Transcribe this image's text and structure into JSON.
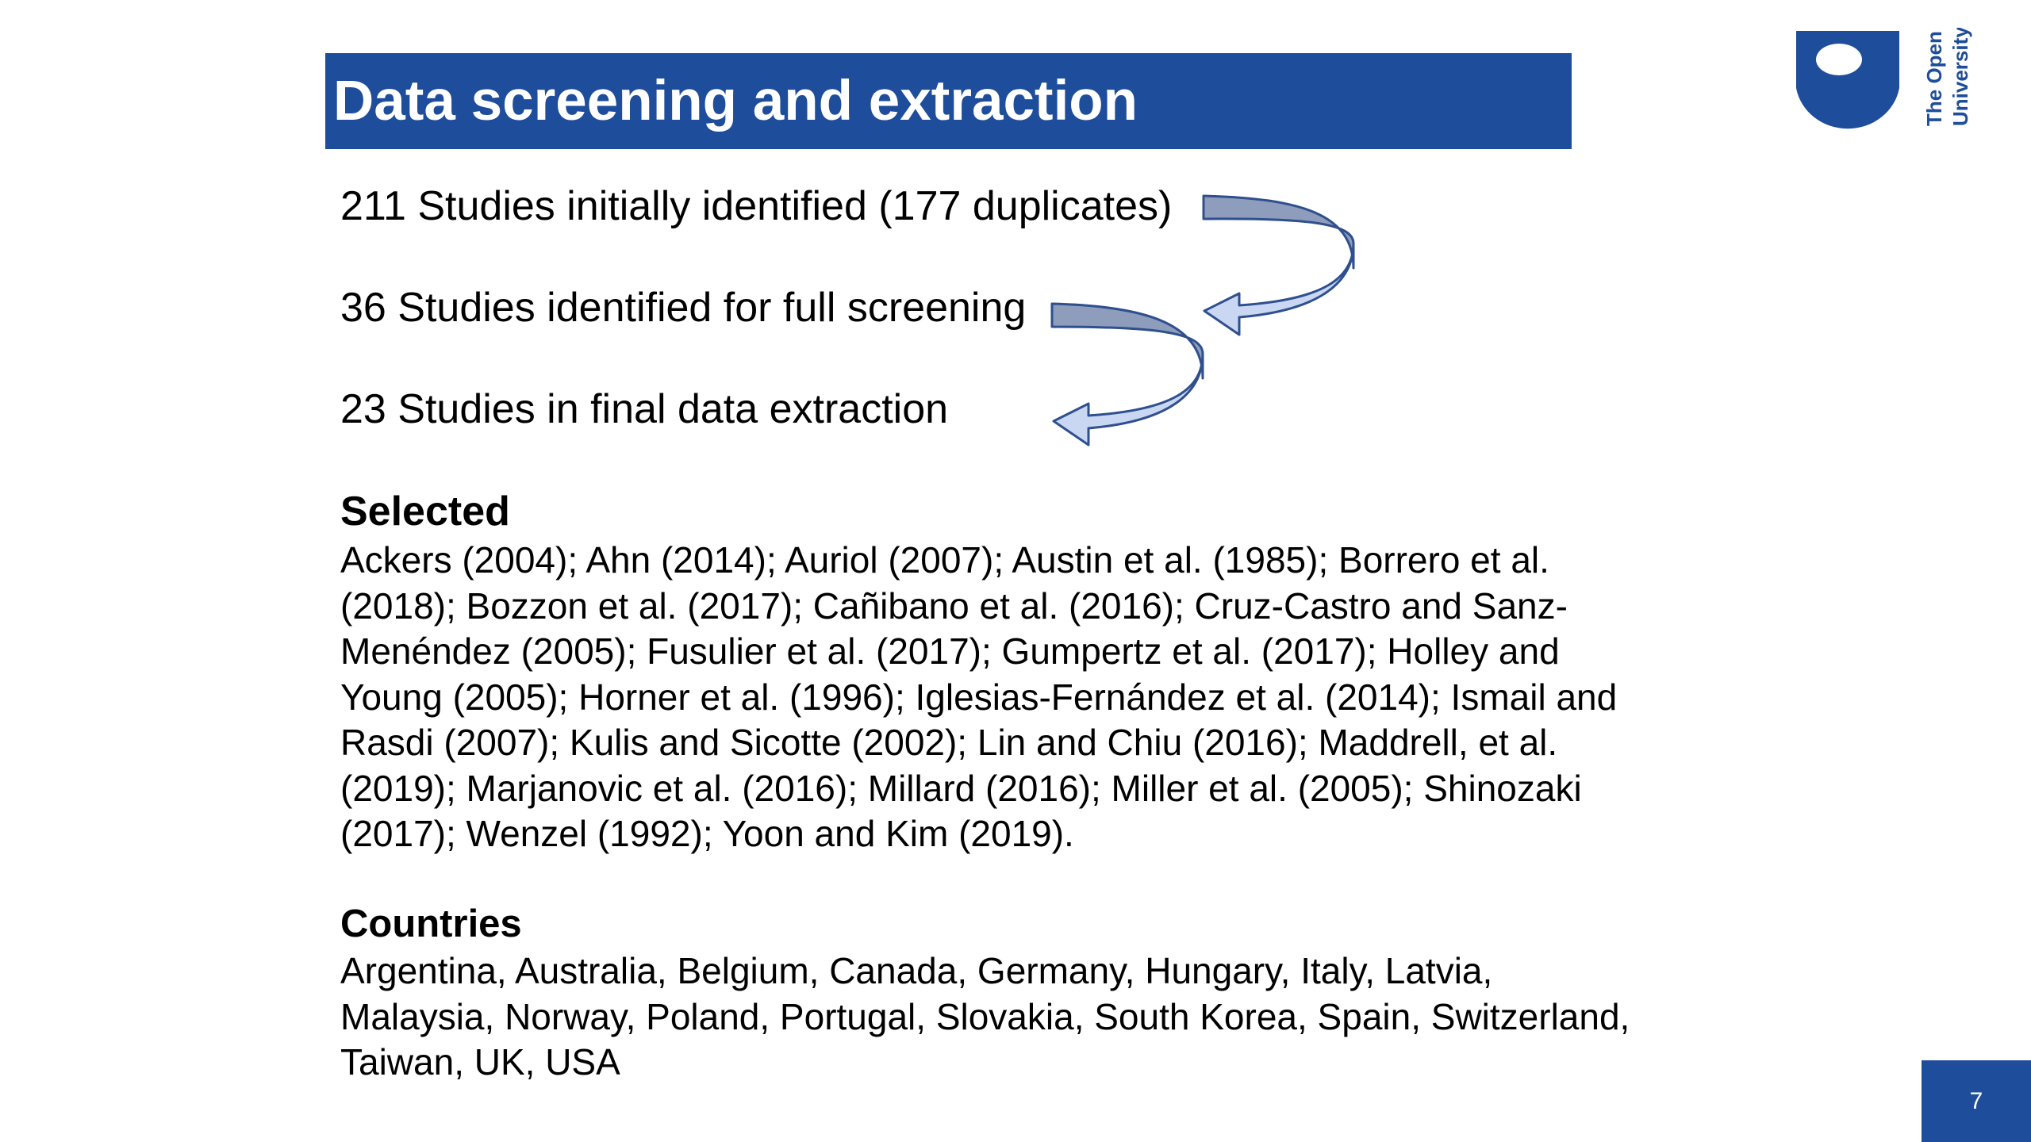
{
  "slide": {
    "title": "Data screening and extraction",
    "page_number": "7"
  },
  "logo": {
    "text": "The Open University",
    "color": "#1e4d9b"
  },
  "flow": {
    "step1": "211 Studies initially identified (177 duplicates)",
    "step2": "36 Studies identified for full screening",
    "step3": "23 Studies in final data extraction"
  },
  "selected": {
    "heading": "Selected",
    "text": "Ackers (2004); Ahn (2014); Auriol (2007); Austin et al. (1985); Borrero et al. (2018); Bozzon et al. (2017); Cañibano et al. (2016); Cruz-Castro and Sanz-Menéndez (2005); Fusulier et al. (2017); Gumpertz et al. (2017); Holley and Young (2005); Horner et al. (1996); Iglesias-Fernández et al. (2014); Ismail and Rasdi (2007); Kulis and Sicotte (2002); Lin and Chiu (2016); Maddrell, et al. (2019); Marjanovic et al. (2016); Millard (2016); Miller et al. (2005); Shinozaki (2017); Wenzel (1992); Yoon and Kim (2019)."
  },
  "countries": {
    "heading": "Countries",
    "text": "Argentina, Australia, Belgium, Canada, Germany, Hungary, Italy, Latvia, Malaysia, Norway, Poland, Portugal, Slovakia, South Korea, Spain, Switzerland, Taiwan, UK, USA"
  },
  "colors": {
    "brand_blue": "#1e4d9b",
    "arrow_dark": "#8d9dbb",
    "arrow_light": "#c9d7f2",
    "arrow_outline": "#2f4f8f"
  }
}
